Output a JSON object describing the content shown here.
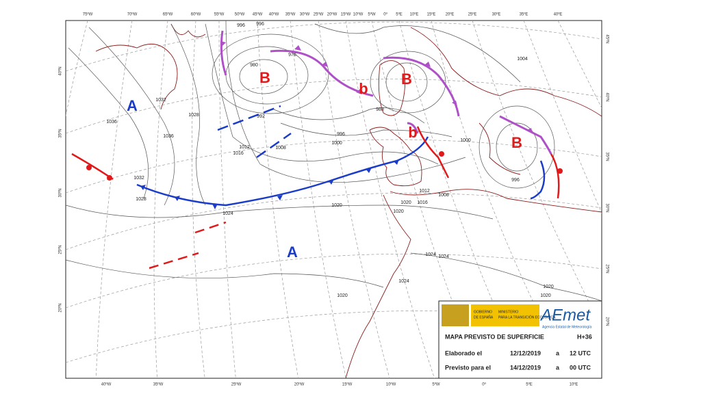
{
  "map": {
    "longitudes_top": [
      "75ºW",
      "70ºW",
      "65ºW",
      "60ºW",
      "55ºW",
      "50ºW",
      "45ºW",
      "40ºW",
      "35ºW",
      "30ºW",
      "25ºW",
      "20ºW",
      "15ºW",
      "10ºW",
      "5ºW",
      "0º",
      "5ºE",
      "10ºE",
      "15ºE",
      "20ºE",
      "25ºE",
      "30ºE",
      "35ºE",
      "40ºE"
    ],
    "longitudes_bottom": [
      "40ºW",
      "35ºW",
      "25ºW",
      "20ºW",
      "15ºW",
      "10ºW",
      "5ºW",
      "0º",
      "5ºE",
      "10ºE"
    ],
    "latitudes_left": [
      "40ºN",
      "35ºN",
      "30ºN",
      "25ºN",
      "20ºN"
    ],
    "latitudes_right": [
      "45ºN",
      "40ºN",
      "35ºN",
      "30ºN",
      "25ºN",
      "20ºN"
    ],
    "systems": [
      "A",
      "A",
      "B",
      "B",
      "B",
      "b",
      "b"
    ],
    "isobars": [
      "1036",
      "1032",
      "1028",
      "1036",
      "1032",
      "1028",
      "1012",
      "1016",
      "1008",
      "1000",
      "996",
      "992",
      "988",
      "1012",
      "1020",
      "1024",
      "1020",
      "1016",
      "1020",
      "1024",
      "1024",
      "1024",
      "1020",
      "1020",
      "1020",
      "1000",
      "996",
      "1008",
      "1004",
      "980",
      "976",
      "996",
      "996"
    ]
  },
  "info_box": {
    "government": "GOBIERNO",
    "country": "DE ESPAÑA",
    "ministry": "MINISTERIO",
    "ministry_line2": "PARA LA TRANSICIÓN ECOLÓGICA",
    "logo": "AEmet",
    "logo_subtitle": "Agencia Estatal de Meteorología",
    "title": "MAPA PREVISTO DE SUPERFICIE",
    "forecast_step": "H+36",
    "rows": [
      [
        "Elaborado el",
        "12/12/2019",
        "a",
        "12 UTC"
      ],
      [
        "Previsto para el",
        "14/12/2019",
        "a",
        "00 UTC"
      ]
    ]
  }
}
